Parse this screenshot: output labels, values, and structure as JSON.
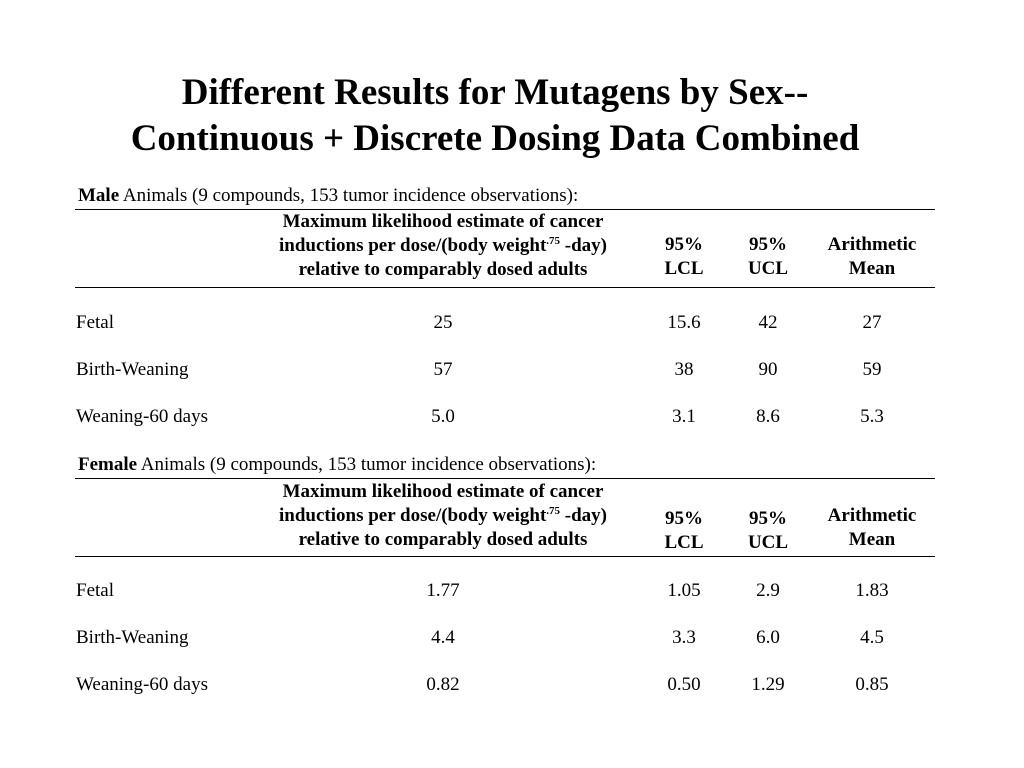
{
  "title": {
    "line1": "Different Results for Mutagens by Sex--",
    "line2": "Continuous + Discrete Dosing Data Combined"
  },
  "header": {
    "mle_line1": "Maximum likelihood estimate of cancer",
    "mle_line2_pre": "inductions per dose/(body weight",
    "mle_line2_sup": ".75",
    "mle_line2_post": " -day)",
    "mle_line3": "relative to comparably dosed adults",
    "lcl_line1": "95%",
    "lcl_line2": "LCL",
    "ucl_line1": "95%",
    "ucl_line2": "UCL",
    "am_line1": "Arithmetic",
    "am_line2": "Mean"
  },
  "sections": [
    {
      "sex": "Male",
      "caption_rest": " Animals (9 compounds, 153 tumor incidence observations):",
      "rows": [
        {
          "label": "Fetal",
          "mle": "25",
          "lcl": "15.6",
          "ucl": "42",
          "mean": "27"
        },
        {
          "label": "Birth-Weaning",
          "mle": "57",
          "lcl": "38",
          "ucl": "90",
          "mean": "59"
        },
        {
          "label": "Weaning-60 days",
          "mle": "5.0",
          "lcl": "3.1",
          "ucl": "8.6",
          "mean": "5.3"
        }
      ]
    },
    {
      "sex": "Female",
      "caption_rest": " Animals (9 compounds, 153 tumor incidence observations):",
      "rows": [
        {
          "label": "Fetal",
          "mle": "1.77",
          "lcl": "1.05",
          "ucl": "2.9",
          "mean": "1.83"
        },
        {
          "label": "Birth-Weaning",
          "mle": "4.4",
          "lcl": "3.3",
          "ucl": "6.0",
          "mean": "4.5"
        },
        {
          "label": "Weaning-60 days",
          "mle": "0.82",
          "lcl": "0.50",
          "ucl": "1.29",
          "mean": "0.85"
        }
      ]
    }
  ]
}
